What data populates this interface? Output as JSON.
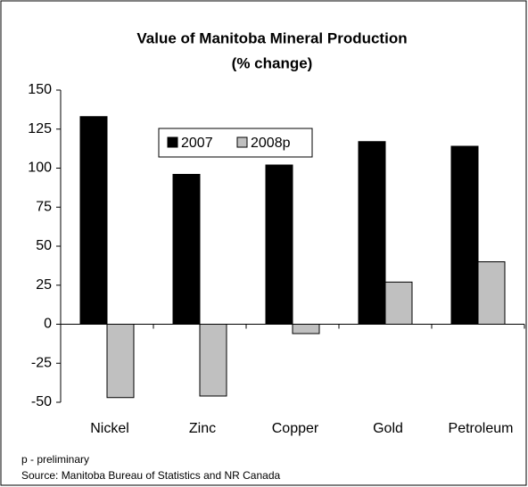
{
  "chart_data": {
    "type": "bar",
    "title": "Value of Manitoba Mineral Production",
    "subtitle": "(% change)",
    "categories": [
      "Nickel",
      "Zinc",
      "Copper",
      "Gold",
      "Petroleum"
    ],
    "series": [
      {
        "name": "2007",
        "color": "#000000",
        "values": [
          133,
          96,
          102,
          117,
          114
        ]
      },
      {
        "name": "2008p",
        "color": "#c0c0c0",
        "values": [
          -47,
          -46,
          -6,
          27,
          40
        ]
      }
    ],
    "ylim": [
      -50,
      150
    ],
    "yticks": [
      -50,
      -25,
      0,
      25,
      50,
      75,
      100,
      125,
      150
    ],
    "legend": "top",
    "notes": [
      "p - preliminary",
      "Source: Manitoba Bureau of Statistics and NR Canada"
    ]
  }
}
